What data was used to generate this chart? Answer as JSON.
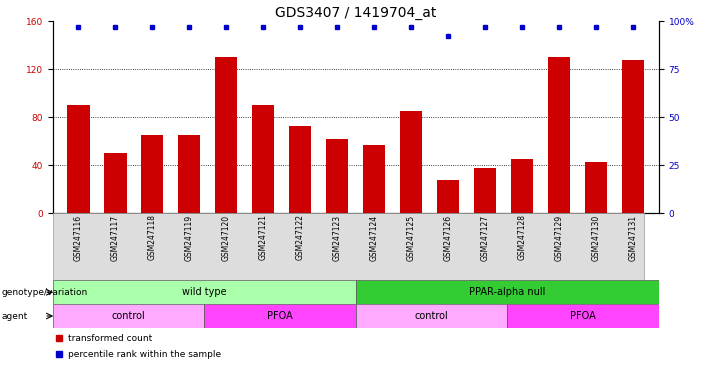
{
  "title": "GDS3407 / 1419704_at",
  "samples": [
    "GSM247116",
    "GSM247117",
    "GSM247118",
    "GSM247119",
    "GSM247120",
    "GSM247121",
    "GSM247122",
    "GSM247123",
    "GSM247124",
    "GSM247125",
    "GSM247126",
    "GSM247127",
    "GSM247128",
    "GSM247129",
    "GSM247130",
    "GSM247131"
  ],
  "bar_values": [
    90,
    50,
    65,
    65,
    130,
    90,
    73,
    62,
    57,
    85,
    28,
    38,
    45,
    130,
    43,
    128
  ],
  "percentile_values": [
    97,
    97,
    97,
    97,
    97,
    97,
    97,
    97,
    97,
    97,
    92,
    97,
    97,
    97,
    97,
    97
  ],
  "bar_color": "#CC0000",
  "dot_color": "#0000CC",
  "ylim_left": [
    0,
    160
  ],
  "ylim_right": [
    0,
    100
  ],
  "yticks_left": [
    0,
    40,
    80,
    120,
    160
  ],
  "yticks_right": [
    0,
    25,
    50,
    75,
    100
  ],
  "yticklabels_right": [
    "0",
    "25",
    "50",
    "75",
    "100%"
  ],
  "grid_values": [
    40,
    80,
    120
  ],
  "groups": [
    {
      "label": "wild type",
      "start": 0,
      "end": 8,
      "color": "#AAFFAA"
    },
    {
      "label": "PPAR-alpha null",
      "start": 8,
      "end": 16,
      "color": "#33CC33"
    }
  ],
  "agents": [
    {
      "label": "control",
      "start": 0,
      "end": 4,
      "color": "#FFAAFF"
    },
    {
      "label": "PFOA",
      "start": 4,
      "end": 8,
      "color": "#FF44FF"
    },
    {
      "label": "control",
      "start": 8,
      "end": 12,
      "color": "#FFAAFF"
    },
    {
      "label": "PFOA",
      "start": 12,
      "end": 16,
      "color": "#FF44FF"
    }
  ],
  "legend_items": [
    {
      "label": "transformed count",
      "color": "#CC0000"
    },
    {
      "label": "percentile rank within the sample",
      "color": "#0000CC"
    }
  ],
  "title_fontsize": 10,
  "tick_fontsize": 6.5,
  "label_fontsize": 7.5,
  "bar_width": 0.6,
  "xtick_fontsize": 5.5
}
